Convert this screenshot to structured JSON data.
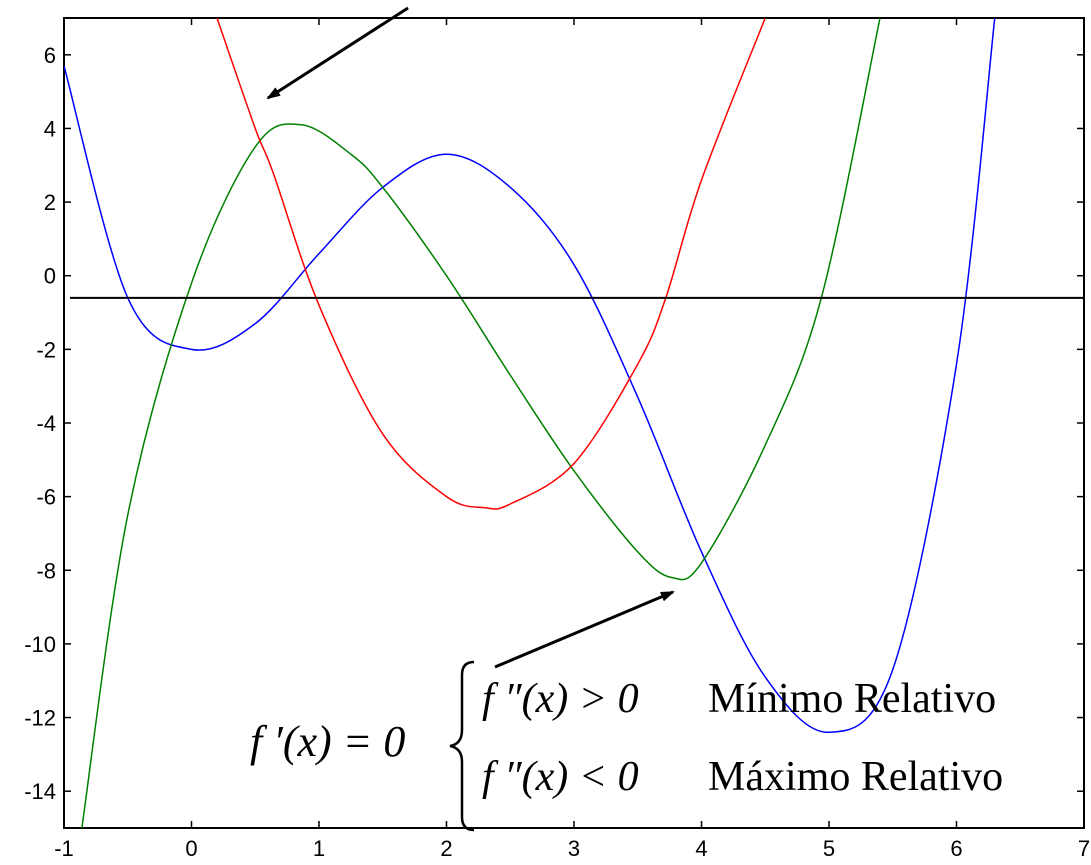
{
  "chart_data": {
    "type": "line",
    "title": "",
    "xlabel": "",
    "ylabel": "",
    "xlim": [
      -1,
      7
    ],
    "ylim": [
      -15,
      7
    ],
    "grid": false,
    "x_ticks": [
      -1,
      0,
      1,
      2,
      3,
      4,
      5,
      6,
      7
    ],
    "y_ticks": [
      6,
      4,
      2,
      0,
      -2,
      -4,
      -6,
      -8,
      -10,
      -12,
      -14
    ],
    "horizontal_line": {
      "y": -0.6,
      "color": "#000000"
    },
    "series": [
      {
        "color": "#0000ff",
        "x": [
          -1,
          -0.5,
          0,
          0.5,
          1,
          1.5,
          2,
          2.5,
          3,
          3.5,
          4,
          4.5,
          5,
          5.5,
          6,
          6.3
        ],
        "y": [
          5.7,
          -0.6,
          -2.0,
          -1.3,
          0.6,
          2.4,
          3.3,
          2.4,
          0.3,
          -3.3,
          -7.5,
          -10.9,
          -12.4,
          -10.7,
          -2.4,
          7.0
        ]
      },
      {
        "color": "#008000",
        "x": [
          -0.86,
          -0.5,
          0,
          0.5,
          0.86,
          1.25,
          1.5,
          2,
          2.5,
          3,
          3.5,
          3.77,
          4,
          4.5,
          4.94,
          5.4
        ],
        "y": [
          -15.0,
          -6.5,
          -0.2,
          3.5,
          4.1,
          3.3,
          2.4,
          0.0,
          -2.7,
          -5.3,
          -7.5,
          -8.2,
          -7.8,
          -4.6,
          -0.6,
          7.0
        ]
      },
      {
        "color": "#ff0000",
        "x": [
          0.2,
          0.5,
          0.64,
          1,
          1.5,
          2,
          2.3,
          2.5,
          3,
          3.5,
          3.72,
          4,
          4.5
        ],
        "y": [
          7.0,
          4.0,
          2.8,
          -0.8,
          -4.3,
          -6.0,
          -6.3,
          -6.2,
          -5.1,
          -2.4,
          -0.6,
          2.6,
          7.0
        ]
      }
    ],
    "annotations": {
      "formula_lhs": "f ′(x) = 0",
      "case_1_condition": "f ″(x) > 0",
      "case_1_label": "Mínimo Relativo",
      "case_2_condition": "f ″(x) < 0",
      "case_2_label": "Máximo Relativo"
    }
  }
}
